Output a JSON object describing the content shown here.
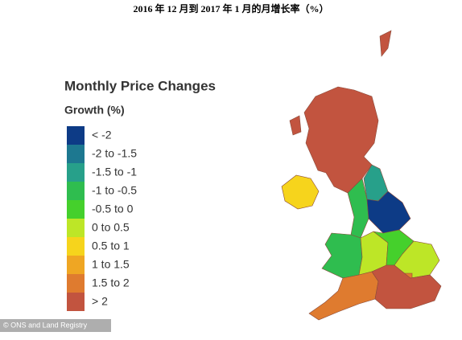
{
  "header": {
    "title": "2016 年 12 月到 2017 年 1 月的月增长率（%）"
  },
  "legend": {
    "title": "Monthly Price Changes",
    "subtitle": "Growth (%)",
    "items": [
      {
        "label": "< -2",
        "color": "#0d3b86"
      },
      {
        "label": "-2 to -1.5",
        "color": "#1d7890"
      },
      {
        "label": "-1.5 to -1",
        "color": "#27a08a"
      },
      {
        "label": "-1 to -0.5",
        "color": "#2fbd4f"
      },
      {
        "label": "-0.5 to 0",
        "color": "#45d02c"
      },
      {
        "label": "0 to 0.5",
        "color": "#bde627"
      },
      {
        "label": "0.5 to 1",
        "color": "#f6d41c"
      },
      {
        "label": "1 to 1.5",
        "color": "#efa623"
      },
      {
        "label": "1.5 to 2",
        "color": "#df7b2f"
      },
      {
        "label": "> 2",
        "color": "#c2543f"
      }
    ]
  },
  "credit": "© ONS and Land Registry"
}
